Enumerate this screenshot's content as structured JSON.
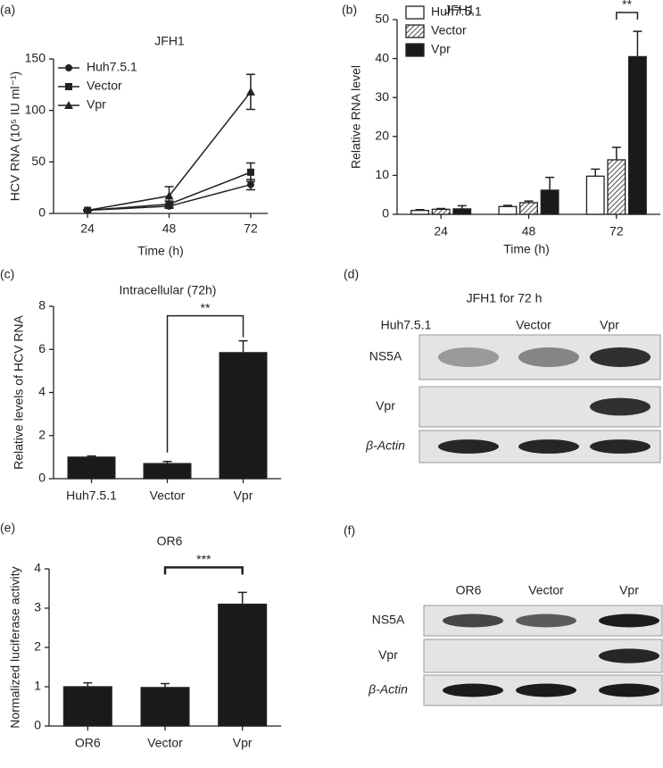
{
  "chart_data": [
    {
      "type": "line",
      "panel": "(a)",
      "title": "JFH1",
      "x_label": "Time (h)",
      "y_label": "HCV RNA (10⁵ IU ml⁻¹)",
      "x": [
        24,
        48,
        72
      ],
      "xlim": [
        14,
        77
      ],
      "xticks": [
        24,
        48,
        72
      ],
      "ylim": [
        0,
        150
      ],
      "yticks": [
        0,
        50,
        100,
        150
      ],
      "legend": "upper left",
      "series": [
        {
          "name": "Huh7.5.1",
          "color": "#222222",
          "marker": "circle",
          "values": [
            3,
            7,
            28
          ],
          "errors": [
            0.5,
            2,
            5
          ]
        },
        {
          "name": "Vector",
          "color": "#222222",
          "marker": "square",
          "values": [
            3,
            9,
            40
          ],
          "errors": [
            0.5,
            3,
            9
          ]
        },
        {
          "name": "Vpr",
          "color": "#222222",
          "marker": "triangle",
          "values": [
            3,
            17,
            118
          ],
          "errors": [
            0.5,
            9,
            17
          ]
        }
      ]
    },
    {
      "type": "bar",
      "panel": "(b)",
      "title": "JFH1",
      "x_label": "Time (h)",
      "y_label": "Relative RNA level",
      "categories": [
        "24",
        "48",
        "72"
      ],
      "ylim": [
        0,
        50
      ],
      "yticks": [
        0,
        10,
        20,
        30,
        40,
        50
      ],
      "legend": "upper left",
      "annotations": [
        "**"
      ],
      "series": [
        {
          "name": "Huh7.5.1",
          "color": "#ffffff",
          "values": [
            1.0,
            2.0,
            9.8
          ],
          "errors": [
            0.2,
            0.3,
            1.8
          ]
        },
        {
          "name": "Vector",
          "color": "#ffffff",
          "hatch": true,
          "values": [
            1.3,
            3.0,
            14.0
          ],
          "errors": [
            0.2,
            0.4,
            3.2
          ]
        },
        {
          "name": "Vpr",
          "color": "#1a1a1a",
          "values": [
            1.4,
            6.2,
            40.5
          ],
          "errors": [
            0.8,
            3.3,
            6.5
          ]
        }
      ]
    },
    {
      "type": "bar",
      "panel": "(c)",
      "title": "Intracellular (72h)",
      "y_label": "Relative levels of HCV RNA",
      "categories": [
        "Huh7.5.1",
        "Vector",
        "Vpr"
      ],
      "ylim": [
        0,
        8
      ],
      "yticks": [
        0,
        2,
        4,
        6,
        8
      ],
      "annotations": [
        "**"
      ],
      "series": [
        {
          "color": "#1a1a1a",
          "values": [
            1.0,
            0.7,
            5.85
          ],
          "errors": [
            0.05,
            0.1,
            0.55
          ]
        }
      ]
    },
    {
      "type": "bar",
      "panel": "(e)",
      "title": "OR6",
      "y_label": "Normalized luciferase activity",
      "categories": [
        "OR6",
        "Vector",
        "Vpr"
      ],
      "ylim": [
        0,
        4
      ],
      "yticks": [
        0,
        1,
        2,
        3,
        4
      ],
      "annotations": [
        "***"
      ],
      "series": [
        {
          "color": "#1a1a1a",
          "values": [
            1.0,
            0.98,
            3.1
          ],
          "errors": [
            0.1,
            0.1,
            0.3
          ]
        }
      ]
    }
  ],
  "blots": [
    {
      "panel": "(d)",
      "title": "JFH1 for 72 h",
      "lanes": [
        "Huh7.5.1",
        "Vector",
        "Vpr"
      ],
      "rows": [
        "NS5A",
        "Vpr",
        "β-Actin"
      ]
    },
    {
      "panel": "(f)",
      "lanes": [
        "OR6",
        "Vector",
        "Vpr"
      ],
      "rows": [
        "NS5A",
        "Vpr",
        "β-Actin"
      ]
    }
  ]
}
